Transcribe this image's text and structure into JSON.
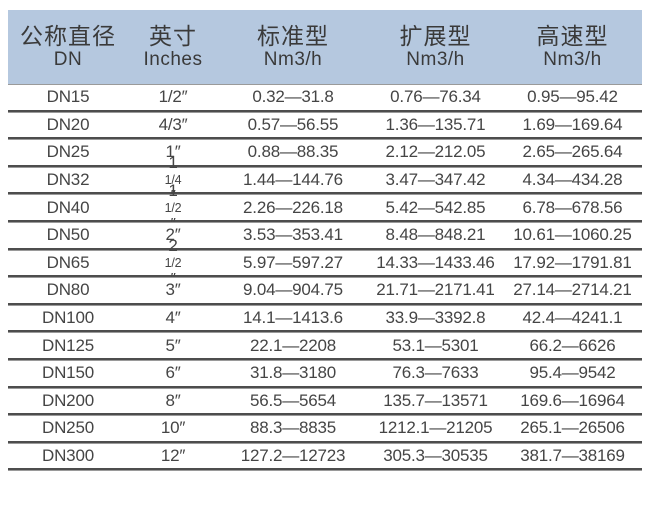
{
  "chart_data": {
    "type": "table",
    "columns": [
      {
        "label": "公称直径",
        "sublabel": "DN"
      },
      {
        "label": "英寸",
        "sublabel": "Inches"
      },
      {
        "label": "标准型",
        "sublabel": "Nm3/h"
      },
      {
        "label": "扩展型",
        "sublabel": "Nm3/h"
      },
      {
        "label": "高速型",
        "sublabel": "Nm3/h"
      }
    ],
    "rows": [
      [
        "DN15",
        "1/2″",
        "0.32—31.8",
        "0.76—76.34",
        "0.95—95.42"
      ],
      [
        "DN20",
        "4/3″",
        "0.57—56.55",
        "1.36—135.71",
        "1.69—169.64"
      ],
      [
        "DN25",
        "1″",
        "0.88—88.35",
        "2.12—212.05",
        "2.65—265.64"
      ],
      [
        "DN32",
        "1 1/4″",
        "1.44—144.76",
        "3.47—347.42",
        "4.34—434.28"
      ],
      [
        "DN40",
        "1 1/2″",
        "2.26—226.18",
        "5.42—542.85",
        "6.78—678.56"
      ],
      [
        "DN50",
        "2″",
        "3.53—353.41",
        "8.48—848.21",
        "10.61—1060.25"
      ],
      [
        "DN65",
        "2 1/2″",
        "5.97—597.27",
        "14.33—1433.46",
        "17.92—1791.81"
      ],
      [
        "DN80",
        "3″",
        "9.04—904.75",
        "21.71—2171.41",
        "27.14—2714.21"
      ],
      [
        "DN100",
        "4″",
        "14.1—1413.6",
        "33.9—3392.8",
        "42.4—4241.1"
      ],
      [
        "DN125",
        "5″",
        "22.1—2208",
        "53.1—5301",
        "66.2—6626"
      ],
      [
        "DN150",
        "6″",
        "31.8—3180",
        "76.3—7633",
        "95.4—9542"
      ],
      [
        "DN200",
        "8″",
        "56.5—5654",
        "135.7—13571",
        "169.6—16964"
      ],
      [
        "DN250",
        "10″",
        "88.3—8835",
        "1212.1—21205",
        "265.1—26506"
      ],
      [
        "DN300",
        "12″",
        "127.2—12723",
        "305.3—30535",
        "381.7—38169"
      ]
    ]
  },
  "colors": {
    "header_bg": "#b5c8df",
    "text": "#454545",
    "header_text": "#3a3a3a",
    "rule_dark": "#4d4d4d",
    "rule_light": "#9a9a9a",
    "page_bg": "#ffffff"
  }
}
